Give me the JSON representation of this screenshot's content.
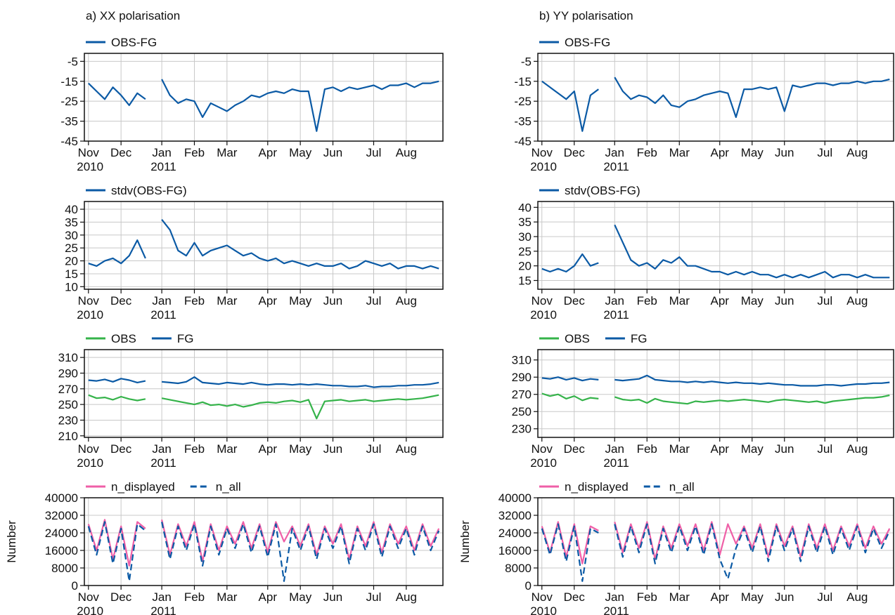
{
  "chart_data": [
    {
      "type": "line",
      "title": "a) XX polarisation",
      "grid": true,
      "categories": [
        "Nov 2010",
        null,
        null,
        null,
        "Dec",
        null,
        null,
        null,
        null,
        "Jan 2011",
        null,
        null,
        null,
        "Feb",
        null,
        null,
        null,
        "Mar",
        null,
        null,
        null,
        null,
        "Apr",
        null,
        null,
        null,
        "May",
        null,
        null,
        null,
        "Jun",
        null,
        null,
        null,
        null,
        "Jul",
        null,
        null,
        null,
        "Aug",
        null,
        null,
        null,
        null
      ],
      "ylim": [
        -45,
        -1
      ],
      "yticks": [
        -5,
        -15,
        -25,
        -35,
        -45
      ],
      "series": [
        {
          "name": "OBS-FG",
          "color": "#0b5aa5",
          "values": [
            -16,
            -20,
            -24,
            -18,
            -22,
            -27,
            -21,
            -24,
            null,
            -14,
            -22,
            -26,
            -24,
            -25,
            -33,
            -26,
            -28,
            -30,
            -27,
            -25,
            -22,
            -23,
            -21,
            -20,
            -21,
            -19,
            -20,
            -20,
            -40,
            -19,
            -18,
            -20,
            -18,
            -19,
            -18,
            -17,
            -19,
            -17,
            -17,
            -16,
            -18,
            -16,
            -16,
            -15
          ]
        }
      ]
    },
    {
      "type": "line",
      "title": "b) YY polarisation",
      "grid": true,
      "categories": [
        "Nov 2010",
        null,
        null,
        null,
        "Dec",
        null,
        null,
        null,
        null,
        "Jan 2011",
        null,
        null,
        null,
        "Feb",
        null,
        null,
        null,
        "Mar",
        null,
        null,
        null,
        null,
        "Apr",
        null,
        null,
        null,
        "May",
        null,
        null,
        null,
        "Jun",
        null,
        null,
        null,
        null,
        "Jul",
        null,
        null,
        null,
        "Aug",
        null,
        null,
        null,
        null
      ],
      "ylim": [
        -45,
        -1
      ],
      "yticks": [
        -5,
        -15,
        -25,
        -35,
        -45
      ],
      "series": [
        {
          "name": "OBS-FG",
          "color": "#0b5aa5",
          "values": [
            -15,
            -18,
            -21,
            -24,
            -20,
            -40,
            -22,
            -19,
            null,
            -13,
            -20,
            -24,
            -22,
            -23,
            -26,
            -22,
            -27,
            -28,
            -25,
            -24,
            -22,
            -21,
            -20,
            -21,
            -33,
            -19,
            -19,
            -18,
            -19,
            -18,
            -30,
            -17,
            -18,
            -17,
            -16,
            -16,
            -17,
            -16,
            -16,
            -15,
            -16,
            -15,
            -15,
            -14
          ]
        }
      ]
    },
    {
      "type": "line",
      "grid": true,
      "categories": [
        "Nov 2010",
        null,
        null,
        null,
        "Dec",
        null,
        null,
        null,
        null,
        "Jan 2011",
        null,
        null,
        null,
        "Feb",
        null,
        null,
        null,
        "Mar",
        null,
        null,
        null,
        null,
        "Apr",
        null,
        null,
        null,
        "May",
        null,
        null,
        null,
        "Jun",
        null,
        null,
        null,
        null,
        "Jul",
        null,
        null,
        null,
        "Aug",
        null,
        null,
        null,
        null
      ],
      "ylim": [
        9,
        43
      ],
      "yticks": [
        10,
        15,
        20,
        25,
        30,
        35,
        40
      ],
      "series": [
        {
          "name": "stdv(OBS-FG)",
          "color": "#0b5aa5",
          "values": [
            19,
            18,
            20,
            21,
            19,
            22,
            28,
            21,
            null,
            36,
            32,
            24,
            22,
            27,
            22,
            24,
            25,
            26,
            24,
            22,
            23,
            21,
            20,
            21,
            19,
            20,
            19,
            18,
            19,
            18,
            18,
            19,
            17,
            18,
            20,
            19,
            18,
            19,
            17,
            18,
            18,
            17,
            18,
            17
          ]
        }
      ]
    },
    {
      "type": "line",
      "grid": true,
      "categories": [
        "Nov 2010",
        null,
        null,
        null,
        "Dec",
        null,
        null,
        null,
        null,
        "Jan 2011",
        null,
        null,
        null,
        "Feb",
        null,
        null,
        null,
        "Mar",
        null,
        null,
        null,
        null,
        "Apr",
        null,
        null,
        null,
        "May",
        null,
        null,
        null,
        "Jun",
        null,
        null,
        null,
        null,
        "Jul",
        null,
        null,
        null,
        "Aug",
        null,
        null,
        null,
        null
      ],
      "ylim": [
        12,
        42
      ],
      "yticks": [
        15,
        20,
        25,
        30,
        35,
        40
      ],
      "series": [
        {
          "name": "stdv(OBS-FG)",
          "color": "#0b5aa5",
          "values": [
            19,
            18,
            19,
            18,
            20,
            24,
            20,
            21,
            null,
            34,
            28,
            22,
            20,
            21,
            19,
            22,
            21,
            23,
            20,
            20,
            19,
            18,
            18,
            17,
            18,
            17,
            18,
            17,
            17,
            16,
            17,
            16,
            17,
            16,
            17,
            18,
            16,
            17,
            17,
            16,
            17,
            16,
            16,
            16
          ]
        }
      ]
    },
    {
      "type": "line",
      "grid": true,
      "categories": [
        "Nov 2010",
        null,
        null,
        null,
        "Dec",
        null,
        null,
        null,
        null,
        "Jan 2011",
        null,
        null,
        null,
        "Feb",
        null,
        null,
        null,
        "Mar",
        null,
        null,
        null,
        null,
        "Apr",
        null,
        null,
        null,
        "May",
        null,
        null,
        null,
        "Jun",
        null,
        null,
        null,
        null,
        "Jul",
        null,
        null,
        null,
        "Aug",
        null,
        null,
        null,
        null
      ],
      "ylim": [
        208,
        320
      ],
      "yticks": [
        210,
        230,
        250,
        270,
        290,
        310
      ],
      "series": [
        {
          "name": "OBS",
          "color": "#35b34a",
          "values": [
            262,
            258,
            259,
            256,
            260,
            257,
            255,
            257,
            null,
            258,
            256,
            254,
            252,
            250,
            253,
            249,
            250,
            248,
            250,
            247,
            249,
            252,
            253,
            252,
            254,
            255,
            253,
            256,
            232,
            254,
            255,
            256,
            254,
            255,
            256,
            254,
            255,
            256,
            257,
            256,
            257,
            258,
            260,
            262
          ]
        },
        {
          "name": "FG",
          "color": "#0b5aa5",
          "values": [
            281,
            280,
            282,
            279,
            283,
            281,
            278,
            280,
            null,
            279,
            278,
            277,
            279,
            285,
            278,
            277,
            276,
            278,
            277,
            276,
            278,
            276,
            275,
            276,
            276,
            275,
            276,
            275,
            276,
            275,
            274,
            274,
            273,
            273,
            274,
            272,
            273,
            273,
            274,
            274,
            275,
            275,
            276,
            278
          ]
        }
      ]
    },
    {
      "type": "line",
      "grid": true,
      "categories": [
        "Nov 2010",
        null,
        null,
        null,
        "Dec",
        null,
        null,
        null,
        null,
        "Jan 2011",
        null,
        null,
        null,
        "Feb",
        null,
        null,
        null,
        "Mar",
        null,
        null,
        null,
        null,
        "Apr",
        null,
        null,
        null,
        "May",
        null,
        null,
        null,
        "Jun",
        null,
        null,
        null,
        null,
        "Jul",
        null,
        null,
        null,
        "Aug",
        null,
        null,
        null,
        null
      ],
      "ylim": [
        220,
        322
      ],
      "yticks": [
        230,
        250,
        270,
        290,
        310
      ],
      "series": [
        {
          "name": "OBS",
          "color": "#35b34a",
          "values": [
            271,
            268,
            270,
            265,
            268,
            263,
            266,
            265,
            null,
            267,
            264,
            263,
            264,
            260,
            265,
            262,
            261,
            260,
            259,
            262,
            261,
            262,
            263,
            262,
            263,
            264,
            263,
            262,
            261,
            263,
            264,
            263,
            262,
            261,
            262,
            260,
            262,
            263,
            264,
            265,
            266,
            266,
            267,
            269
          ]
        },
        {
          "name": "FG",
          "color": "#0b5aa5",
          "values": [
            289,
            288,
            290,
            287,
            289,
            286,
            288,
            287,
            null,
            287,
            286,
            287,
            288,
            292,
            287,
            286,
            285,
            285,
            284,
            285,
            284,
            285,
            284,
            283,
            284,
            283,
            283,
            282,
            283,
            282,
            281,
            281,
            280,
            280,
            280,
            281,
            281,
            280,
            281,
            282,
            282,
            283,
            283,
            284
          ]
        }
      ]
    },
    {
      "type": "line",
      "grid": true,
      "ylabel": "Number",
      "categories": [
        "Nov 2010",
        null,
        null,
        null,
        "Dec",
        null,
        null,
        null,
        null,
        "Jan 2011",
        null,
        null,
        null,
        "Feb",
        null,
        null,
        null,
        "Mar",
        null,
        null,
        null,
        null,
        "Apr",
        null,
        null,
        null,
        "May",
        null,
        null,
        null,
        "Jun",
        null,
        null,
        null,
        null,
        "Jul",
        null,
        null,
        null,
        "Aug",
        null,
        null,
        null,
        null
      ],
      "ylim": [
        0,
        40000
      ],
      "yticks": [
        0,
        8000,
        16000,
        24000,
        32000,
        40000
      ],
      "series": [
        {
          "name": "n_displayed",
          "color": "#ef5fa7",
          "values": [
            28000,
            16000,
            30000,
            12000,
            27000,
            9000,
            29000,
            26000,
            null,
            30000,
            14000,
            28000,
            18000,
            29000,
            11000,
            28000,
            16000,
            27000,
            19000,
            29000,
            17000,
            28000,
            15000,
            29000,
            20000,
            27000,
            18000,
            28000,
            14000,
            27000,
            19000,
            28000,
            12000,
            27000,
            18000,
            29000,
            15000,
            28000,
            19000,
            27000,
            16000,
            28000,
            18000,
            26000
          ]
        },
        {
          "name": "n_all",
          "color": "#0b5aa5",
          "dash": true,
          "values": [
            27000,
            14000,
            29000,
            10000,
            26000,
            2000,
            28000,
            25000,
            null,
            29000,
            12000,
            27000,
            16000,
            28000,
            9000,
            27000,
            14000,
            26000,
            17000,
            28000,
            15000,
            27000,
            13000,
            28000,
            2000,
            26000,
            16000,
            27000,
            12000,
            26000,
            17000,
            27000,
            10000,
            26000,
            16000,
            28000,
            13000,
            27000,
            17000,
            26000,
            14000,
            27000,
            16000,
            25000
          ]
        }
      ]
    },
    {
      "type": "line",
      "grid": true,
      "ylabel": "Number",
      "categories": [
        "Nov 2010",
        null,
        null,
        null,
        "Dec",
        null,
        null,
        null,
        null,
        "Jan 2011",
        null,
        null,
        null,
        "Feb",
        null,
        null,
        null,
        "Mar",
        null,
        null,
        null,
        null,
        "Apr",
        null,
        null,
        null,
        "May",
        null,
        null,
        null,
        "Jun",
        null,
        null,
        null,
        null,
        "Jul",
        null,
        null,
        null,
        "Aug",
        null,
        null,
        null,
        null
      ],
      "ylim": [
        0,
        40000
      ],
      "yticks": [
        0,
        8000,
        16000,
        24000,
        32000,
        40000
      ],
      "series": [
        {
          "name": "n_displayed",
          "color": "#ef5fa7",
          "values": [
            27000,
            15000,
            29000,
            13000,
            28000,
            10000,
            27000,
            25000,
            null,
            29000,
            15000,
            28000,
            17000,
            29000,
            12000,
            27000,
            17000,
            28000,
            18000,
            28000,
            16000,
            29000,
            14000,
            28000,
            19000,
            27000,
            17000,
            28000,
            13000,
            28000,
            18000,
            27000,
            13000,
            28000,
            17000,
            28000,
            16000,
            27000,
            18000,
            28000,
            17000,
            27000,
            19000,
            26000
          ]
        },
        {
          "name": "n_all",
          "color": "#0b5aa5",
          "dash": true,
          "values": [
            26000,
            14000,
            28000,
            11000,
            27000,
            2000,
            26000,
            24000,
            null,
            28000,
            13000,
            27000,
            15000,
            28000,
            10000,
            26000,
            15000,
            27000,
            16000,
            27000,
            14000,
            28000,
            12000,
            3000,
            17000,
            26000,
            15000,
            27000,
            11000,
            27000,
            16000,
            26000,
            11000,
            27000,
            15000,
            27000,
            14000,
            26000,
            16000,
            27000,
            15000,
            26000,
            17000,
            25000
          ]
        }
      ]
    }
  ]
}
